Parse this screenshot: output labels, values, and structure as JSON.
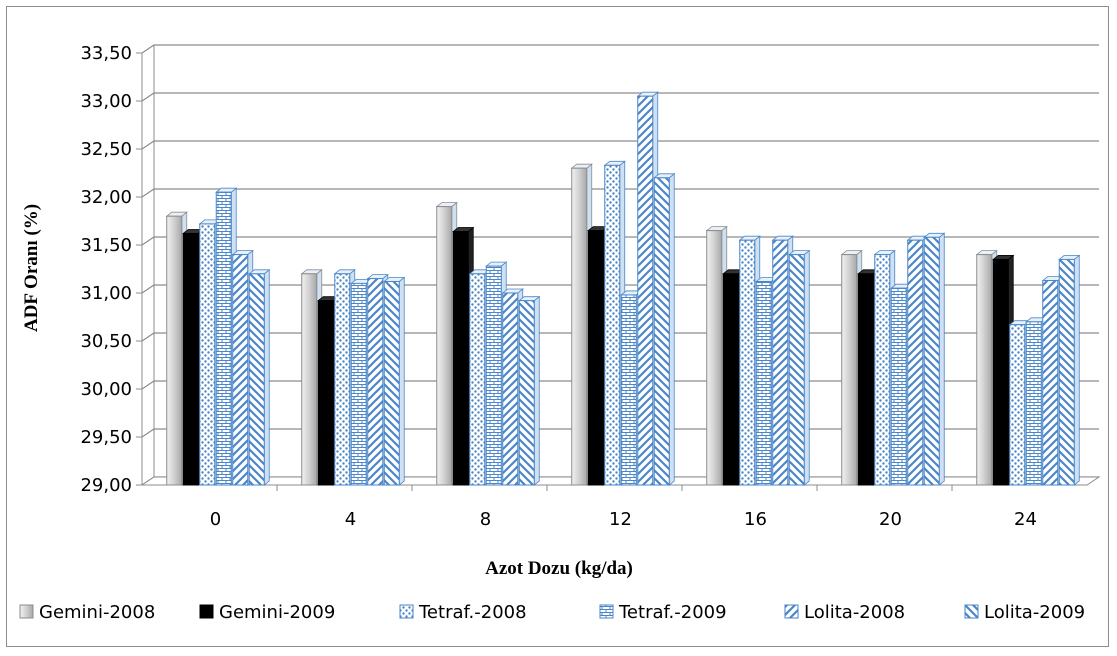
{
  "chart_data": {
    "type": "bar",
    "xlabel": "Azot Dozu (kg/da)",
    "ylabel": "ADF Oranı  (%)",
    "categories": [
      "0",
      "4",
      "8",
      "12",
      "16",
      "20",
      "24"
    ],
    "ylim": [
      29.0,
      33.5
    ],
    "yticks": [
      "29,00",
      "29,50",
      "30,00",
      "30,50",
      "31,00",
      "31,50",
      "32,00",
      "32,50",
      "33,00",
      "33,50"
    ],
    "grid": true,
    "legend_position": "bottom",
    "series": [
      {
        "name": "Gemini-2008",
        "values": [
          31.8,
          31.2,
          31.9,
          32.3,
          31.65,
          31.4,
          31.4
        ],
        "color": "#d9d9d9",
        "pattern": "gradient-grey"
      },
      {
        "name": "Gemini-2009",
        "values": [
          31.62,
          30.92,
          31.64,
          31.65,
          31.2,
          31.2,
          31.35
        ],
        "color": "#000000",
        "pattern": "solid"
      },
      {
        "name": "Tetraf.-2008",
        "values": [
          31.72,
          31.2,
          31.2,
          32.33,
          31.55,
          31.4,
          30.67
        ],
        "color": "#5b9bd5",
        "pattern": "dots"
      },
      {
        "name": "Tetraf.-2009",
        "values": [
          32.05,
          31.1,
          31.28,
          30.98,
          31.12,
          31.05,
          30.7
        ],
        "color": "#5b9bd5",
        "pattern": "bricks"
      },
      {
        "name": "Lolita-2008",
        "values": [
          31.4,
          31.15,
          31.0,
          33.05,
          31.55,
          31.55,
          31.13
        ],
        "color": "#5b9bd5",
        "pattern": "diag-up"
      },
      {
        "name": "Lolita-2009",
        "values": [
          31.2,
          31.12,
          30.92,
          32.2,
          31.4,
          31.58,
          31.35
        ],
        "color": "#5b9bd5",
        "pattern": "diag-down"
      }
    ]
  }
}
